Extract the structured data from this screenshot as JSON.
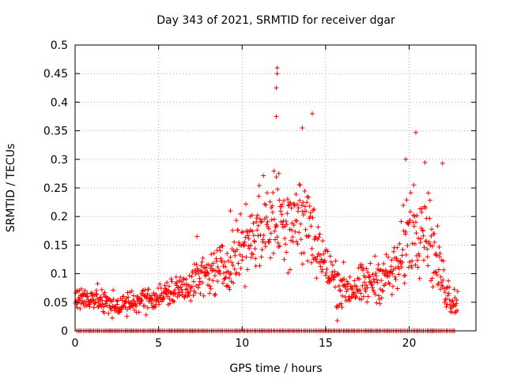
{
  "chart_data": {
    "type": "scatter",
    "title": "Day 343 of 2021, SRMTID for receiver dgar",
    "xlabel": "GPS time / hours",
    "ylabel": "SRMTID / TECUs",
    "xlim": [
      0,
      24
    ],
    "ylim": [
      0,
      0.5
    ],
    "grid": true,
    "x_ticks": [
      0,
      5,
      10,
      15,
      20
    ],
    "y_ticks": [
      0,
      0.05,
      0.1,
      0.15,
      0.2,
      0.25,
      0.3,
      0.35,
      0.4,
      0.45,
      0.5
    ],
    "x_tick_labels": [
      "0",
      "5",
      "10",
      "15",
      "20"
    ],
    "y_tick_labels": [
      "0",
      "0.05",
      "0.1",
      "0.15",
      "0.2",
      "0.25",
      "0.3",
      "0.35",
      "0.4",
      "0.45",
      "0.5"
    ],
    "marker": "+",
    "series": [
      {
        "name": "SRMTID",
        "color": "#ff0000",
        "profile": [
          [
            0.0,
            0.06
          ],
          [
            0.5,
            0.055
          ],
          [
            1.0,
            0.06
          ],
          [
            2.0,
            0.045
          ],
          [
            3.0,
            0.045
          ],
          [
            4.0,
            0.055
          ],
          [
            5.0,
            0.06
          ],
          [
            6.0,
            0.07
          ],
          [
            7.0,
            0.085
          ],
          [
            8.0,
            0.1
          ],
          [
            9.0,
            0.11
          ],
          [
            10.0,
            0.15
          ],
          [
            11.0,
            0.18
          ],
          [
            12.0,
            0.2
          ],
          [
            13.0,
            0.2
          ],
          [
            14.0,
            0.19
          ],
          [
            15.0,
            0.11
          ],
          [
            16.0,
            0.075
          ],
          [
            17.0,
            0.075
          ],
          [
            18.0,
            0.09
          ],
          [
            19.0,
            0.1
          ],
          [
            19.5,
            0.12
          ],
          [
            20.0,
            0.18
          ],
          [
            21.0,
            0.2
          ],
          [
            21.5,
            0.13
          ],
          [
            22.0,
            0.09
          ],
          [
            22.5,
            0.055
          ],
          [
            23.0,
            0.05
          ]
        ],
        "spread": [
          [
            0.0,
            0.015
          ],
          [
            5.0,
            0.015
          ],
          [
            8.0,
            0.025
          ],
          [
            10.0,
            0.04
          ],
          [
            12.0,
            0.06
          ],
          [
            14.0,
            0.06
          ],
          [
            15.0,
            0.03
          ],
          [
            17.0,
            0.025
          ],
          [
            19.0,
            0.03
          ],
          [
            20.0,
            0.06
          ],
          [
            21.0,
            0.06
          ],
          [
            22.0,
            0.03
          ],
          [
            23.0,
            0.015
          ]
        ],
        "notable_points": [
          {
            "x": 12.1,
            "y": 0.46
          },
          {
            "x": 12.1,
            "y": 0.45
          },
          {
            "x": 12.05,
            "y": 0.425
          },
          {
            "x": 12.05,
            "y": 0.375
          },
          {
            "x": 14.2,
            "y": 0.38
          },
          {
            "x": 13.6,
            "y": 0.355
          },
          {
            "x": 20.4,
            "y": 0.347
          },
          {
            "x": 22.0,
            "y": 0.293
          },
          {
            "x": 19.8,
            "y": 0.3
          },
          {
            "x": 9.3,
            "y": 0.21
          },
          {
            "x": 7.3,
            "y": 0.165
          },
          {
            "x": 15.7,
            "y": 0.018
          }
        ],
        "zero_band": {
          "y": 0,
          "x_start": 0.1,
          "x_end": 22.8
        }
      }
    ]
  }
}
